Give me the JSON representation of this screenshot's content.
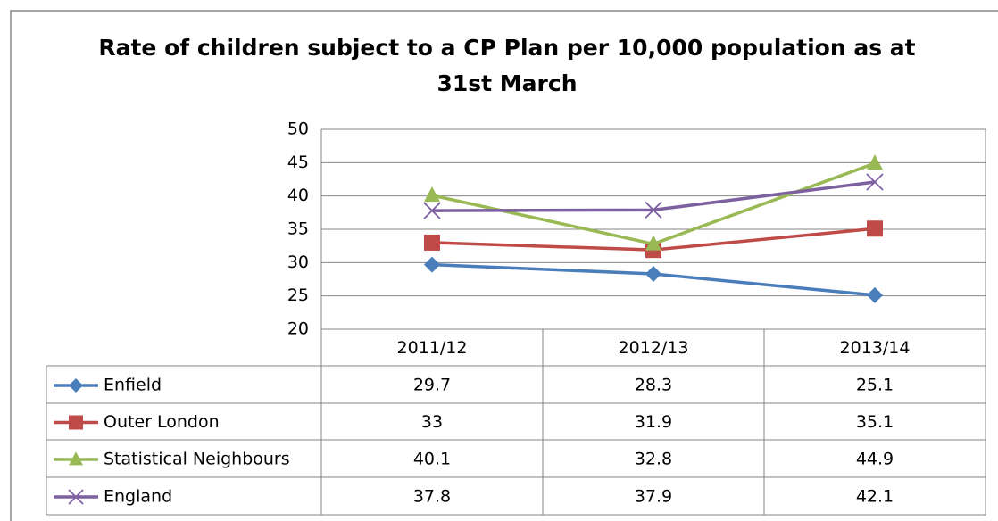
{
  "chart_data": {
    "type": "line",
    "title": [
      "Rate of children subject to a CP Plan per 10,000 population as at",
      "31st March"
    ],
    "categories": [
      "2011/12",
      "2012/13",
      "2013/14"
    ],
    "series": [
      {
        "name": "Enfield",
        "color": "#4a7ebb",
        "marker": "diamond",
        "values": [
          29.7,
          28.3,
          25.1
        ]
      },
      {
        "name": "Outer London",
        "color": "#be4b48",
        "marker": "square",
        "values": [
          33,
          31.9,
          35.1
        ]
      },
      {
        "name": "Statistical Neighbours",
        "color": "#98b954",
        "marker": "triangle",
        "values": [
          40.1,
          32.8,
          44.9
        ]
      },
      {
        "name": "England",
        "color": "#7d60a0",
        "marker": "x",
        "values": [
          37.8,
          37.9,
          42.1
        ]
      }
    ],
    "ylim": [
      20,
      50
    ],
    "yticks": [
      20,
      25,
      30,
      35,
      40,
      45,
      50
    ],
    "grid": true,
    "data_table": true
  }
}
